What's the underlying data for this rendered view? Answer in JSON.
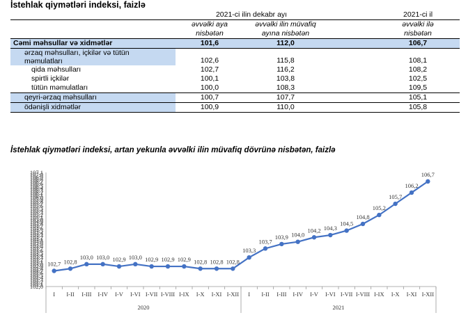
{
  "table_title": "İstehlak qiymətləri indeksi, faizlə",
  "header": {
    "group1": "2021-ci ilin dekabr ayı",
    "group2": "2021-ci il",
    "col1": "əvvəlki aya nisbətən",
    "col1_a": "əvvəlki aya",
    "col1_b": "nisbətən",
    "col2_a": "əvvəlki ilin müvafiq",
    "col2_b": "ayına nisbətən",
    "col3_a": "əvvəlki ilə",
    "col3_b": "nisbətən"
  },
  "rows": [
    {
      "label": "Cəmi məhsullar və xidmətlər",
      "v1": "101,6",
      "v2": "112,0",
      "v3": "106,7"
    },
    {
      "label_a": "ərzaq məhsulları, içkilər və tütün",
      "label_b": "məmulatları",
      "v1": "102,6",
      "v2": "115,8",
      "v3": "108,1"
    },
    {
      "label": "qida məhsulları",
      "v1": "102,7",
      "v2": "116,2",
      "v3": "108,2"
    },
    {
      "label": "spirtli içkilər",
      "v1": "100,1",
      "v2": "103,8",
      "v3": "102,5"
    },
    {
      "label": "tütün məmulatları",
      "v1": "100,0",
      "v2": "108,3",
      "v3": "109,5"
    },
    {
      "label": "qeyri-ərzaq məhsulları",
      "v1": "100,7",
      "v2": "107,7",
      "v3": "105,1"
    },
    {
      "label": "ödənişli xidmətlər",
      "v1": "100,9",
      "v2": "110,0",
      "v3": "105,8"
    }
  ],
  "chart_title": "İstehlak qiymətləri indeksi, artan yekunla əvvəlki ilin müvafiq dövrünə nisbətən, faizlə",
  "chart_data": {
    "type": "line",
    "categories": [
      "I",
      "I-II",
      "I-III",
      "I-IV",
      "I-V",
      "I-VI",
      "I-VII",
      "I-VIII",
      "I-IX",
      "I-X",
      "I-XI",
      "I-XII",
      "I",
      "I-II",
      "I-III",
      "I-IV",
      "I-V",
      "I-VI",
      "I-VII",
      "I-VIII",
      "I-IX",
      "I-X",
      "I-XI",
      "I-XII"
    ],
    "groups": [
      "2020",
      "2021"
    ],
    "values": [
      102.7,
      102.8,
      103.0,
      103.0,
      102.9,
      103.0,
      102.9,
      102.9,
      102.9,
      102.8,
      102.8,
      102.8,
      103.3,
      103.7,
      103.9,
      104.0,
      104.2,
      104.3,
      104.5,
      104.8,
      105.2,
      105.7,
      106.2,
      106.7
    ],
    "labels": [
      "102,7",
      "102,8",
      "103,0",
      "103,0",
      "102,9",
      "103,0",
      "102,9",
      "102,9",
      "102,9",
      "102,8",
      "102,8",
      "102,8",
      "103,3",
      "103,7",
      "103,9",
      "104,0",
      "104,2",
      "104,3",
      "104,5",
      "104,8",
      "105,2",
      "105,7",
      "106,2",
      "106,7"
    ],
    "ylim": [
      102.0,
      107.1
    ],
    "yticks": [
      "102,0",
      "102,1",
      "102,2",
      "102,3",
      "102,4",
      "102,5",
      "102,6",
      "102,7",
      "102,8",
      "102,9",
      "103,0",
      "103,1",
      "103,2",
      "103,3",
      "103,4",
      "103,5",
      "103,6",
      "103,7",
      "103,8",
      "103,9",
      "104,0",
      "104,1",
      "104,2",
      "104,3",
      "104,4",
      "104,5",
      "104,6",
      "104,7",
      "104,8",
      "104,9",
      "105,0",
      "105,1",
      "105,2",
      "105,3",
      "105,4",
      "105,5",
      "105,6",
      "105,7",
      "105,8",
      "105,9",
      "106,0",
      "106,1",
      "106,2",
      "106,3",
      "106,4",
      "106,5",
      "106,6",
      "106,7",
      "106,8",
      "106,9",
      "107,0",
      "107,1"
    ],
    "line_color": "#4472c4",
    "grid": false
  }
}
